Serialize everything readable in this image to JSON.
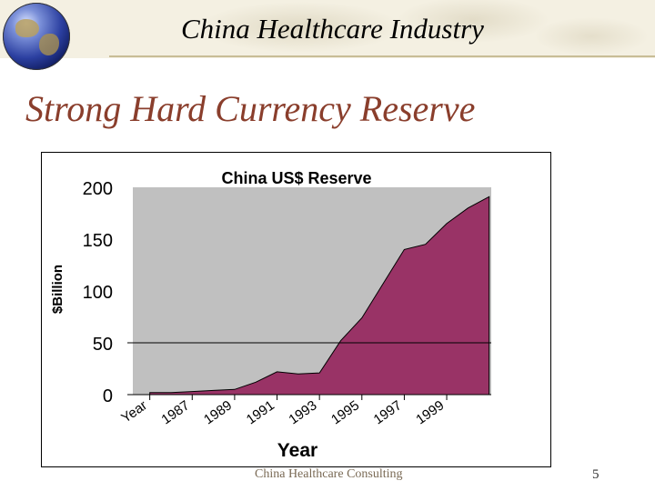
{
  "header": {
    "title": "China Healthcare Industry"
  },
  "slide": {
    "title": "Strong Hard Currency Reserve"
  },
  "footer": {
    "text": "China Healthcare Consulting",
    "page_number": "5"
  },
  "colors": {
    "area_fill": "#993366",
    "plot_bg": "#c0c0c0",
    "title_accent": "#8a3e2c"
  },
  "chart_data": {
    "type": "area",
    "title": "China US$ Reserve",
    "xlabel": "Year",
    "ylabel": "$Billion",
    "ylim": [
      0,
      200
    ],
    "y_ticks": [
      "0",
      "50",
      "100",
      "150",
      "200"
    ],
    "x_tick_labels": [
      "Year",
      "1987",
      "1989",
      "1991",
      "1993",
      "1995",
      "1997",
      "1999"
    ],
    "x_tick_years": [
      1985,
      1987,
      1989,
      1991,
      1993,
      1995,
      1997,
      1999
    ],
    "grid": false,
    "legend": "none",
    "series": [
      {
        "x": [
          1985,
          1986,
          1987,
          1988,
          1989,
          1990,
          1991,
          1992,
          1993,
          1994,
          1995,
          1996,
          1997,
          1998,
          1999,
          2000,
          2001
        ],
        "values": [
          2,
          2,
          3,
          4,
          5,
          12,
          22,
          20,
          21,
          52,
          74,
          107,
          140,
          145,
          165,
          180,
          191
        ]
      }
    ]
  }
}
